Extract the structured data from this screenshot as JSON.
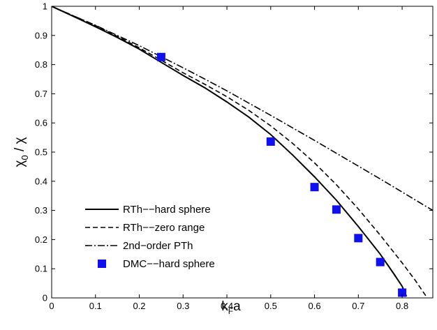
{
  "chart_data": {
    "type": "line",
    "title": "",
    "xlabel": {
      "main": "k",
      "sub": "F",
      "tail": "a"
    },
    "ylabel": {
      "main": "χ",
      "sub": "0",
      "tail": " / χ"
    },
    "xlim": [
      0,
      0.87
    ],
    "ylim": [
      0,
      1
    ],
    "xticks": [
      0,
      0.1,
      0.2,
      0.3,
      0.4,
      0.5,
      0.6,
      0.7,
      0.8
    ],
    "xtick_labels": [
      "0",
      "0.1",
      "0.2",
      "0.3",
      "0.4",
      "0.5",
      "0.6",
      "0.7",
      "0.8"
    ],
    "yticks": [
      0,
      0.1,
      0.2,
      0.3,
      0.4,
      0.5,
      0.6,
      0.7,
      0.8,
      0.9,
      1
    ],
    "ytick_labels": [
      "0",
      "0.1",
      "0.2",
      "0.3",
      "0.4",
      "0.5",
      "0.6",
      "0.7",
      "0.8",
      "0.9",
      "1"
    ],
    "grid": false,
    "legend_position": "bottom-left",
    "series": [
      {
        "name": "RTh−−hard sphere",
        "style": "solid",
        "color": "#000000",
        "x": [
          0,
          0.05,
          0.1,
          0.15,
          0.2,
          0.25,
          0.3,
          0.35,
          0.4,
          0.45,
          0.5,
          0.55,
          0.6,
          0.65,
          0.7,
          0.75,
          0.78,
          0.8,
          0.81
        ],
        "y": [
          1,
          0.965,
          0.93,
          0.893,
          0.853,
          0.808,
          0.763,
          0.72,
          0.672,
          0.62,
          0.56,
          0.49,
          0.415,
          0.335,
          0.245,
          0.15,
          0.085,
          0.04,
          0.005
        ]
      },
      {
        "name": "RTh−−zero range",
        "style": "dashed",
        "color": "#000000",
        "x": [
          0,
          0.05,
          0.1,
          0.15,
          0.2,
          0.25,
          0.3,
          0.35,
          0.4,
          0.45,
          0.5,
          0.55,
          0.6,
          0.65,
          0.7,
          0.75,
          0.8,
          0.83,
          0.855
        ],
        "y": [
          1,
          0.967,
          0.934,
          0.897,
          0.858,
          0.815,
          0.772,
          0.732,
          0.69,
          0.643,
          0.59,
          0.53,
          0.463,
          0.388,
          0.305,
          0.215,
          0.12,
          0.06,
          0.005
        ]
      },
      {
        "name": "2nd−order PTh",
        "style": "dashdot",
        "color": "#000000",
        "x": [
          0,
          0.05,
          0.1,
          0.15,
          0.2,
          0.25,
          0.3,
          0.35,
          0.4,
          0.45,
          0.5,
          0.55,
          0.6,
          0.65,
          0.7,
          0.75,
          0.8,
          0.85,
          0.87
        ],
        "y": [
          1,
          0.967,
          0.935,
          0.9,
          0.865,
          0.827,
          0.789,
          0.75,
          0.71,
          0.668,
          0.626,
          0.583,
          0.54,
          0.496,
          0.452,
          0.408,
          0.363,
          0.318,
          0.3
        ]
      },
      {
        "name": "DMC−−hard sphere",
        "style": "marker",
        "color": "#1010ee",
        "x": [
          0.25,
          0.5,
          0.6,
          0.65,
          0.7,
          0.75,
          0.8
        ],
        "y": [
          0.826,
          0.536,
          0.38,
          0.303,
          0.205,
          0.123,
          0.018
        ]
      }
    ]
  }
}
